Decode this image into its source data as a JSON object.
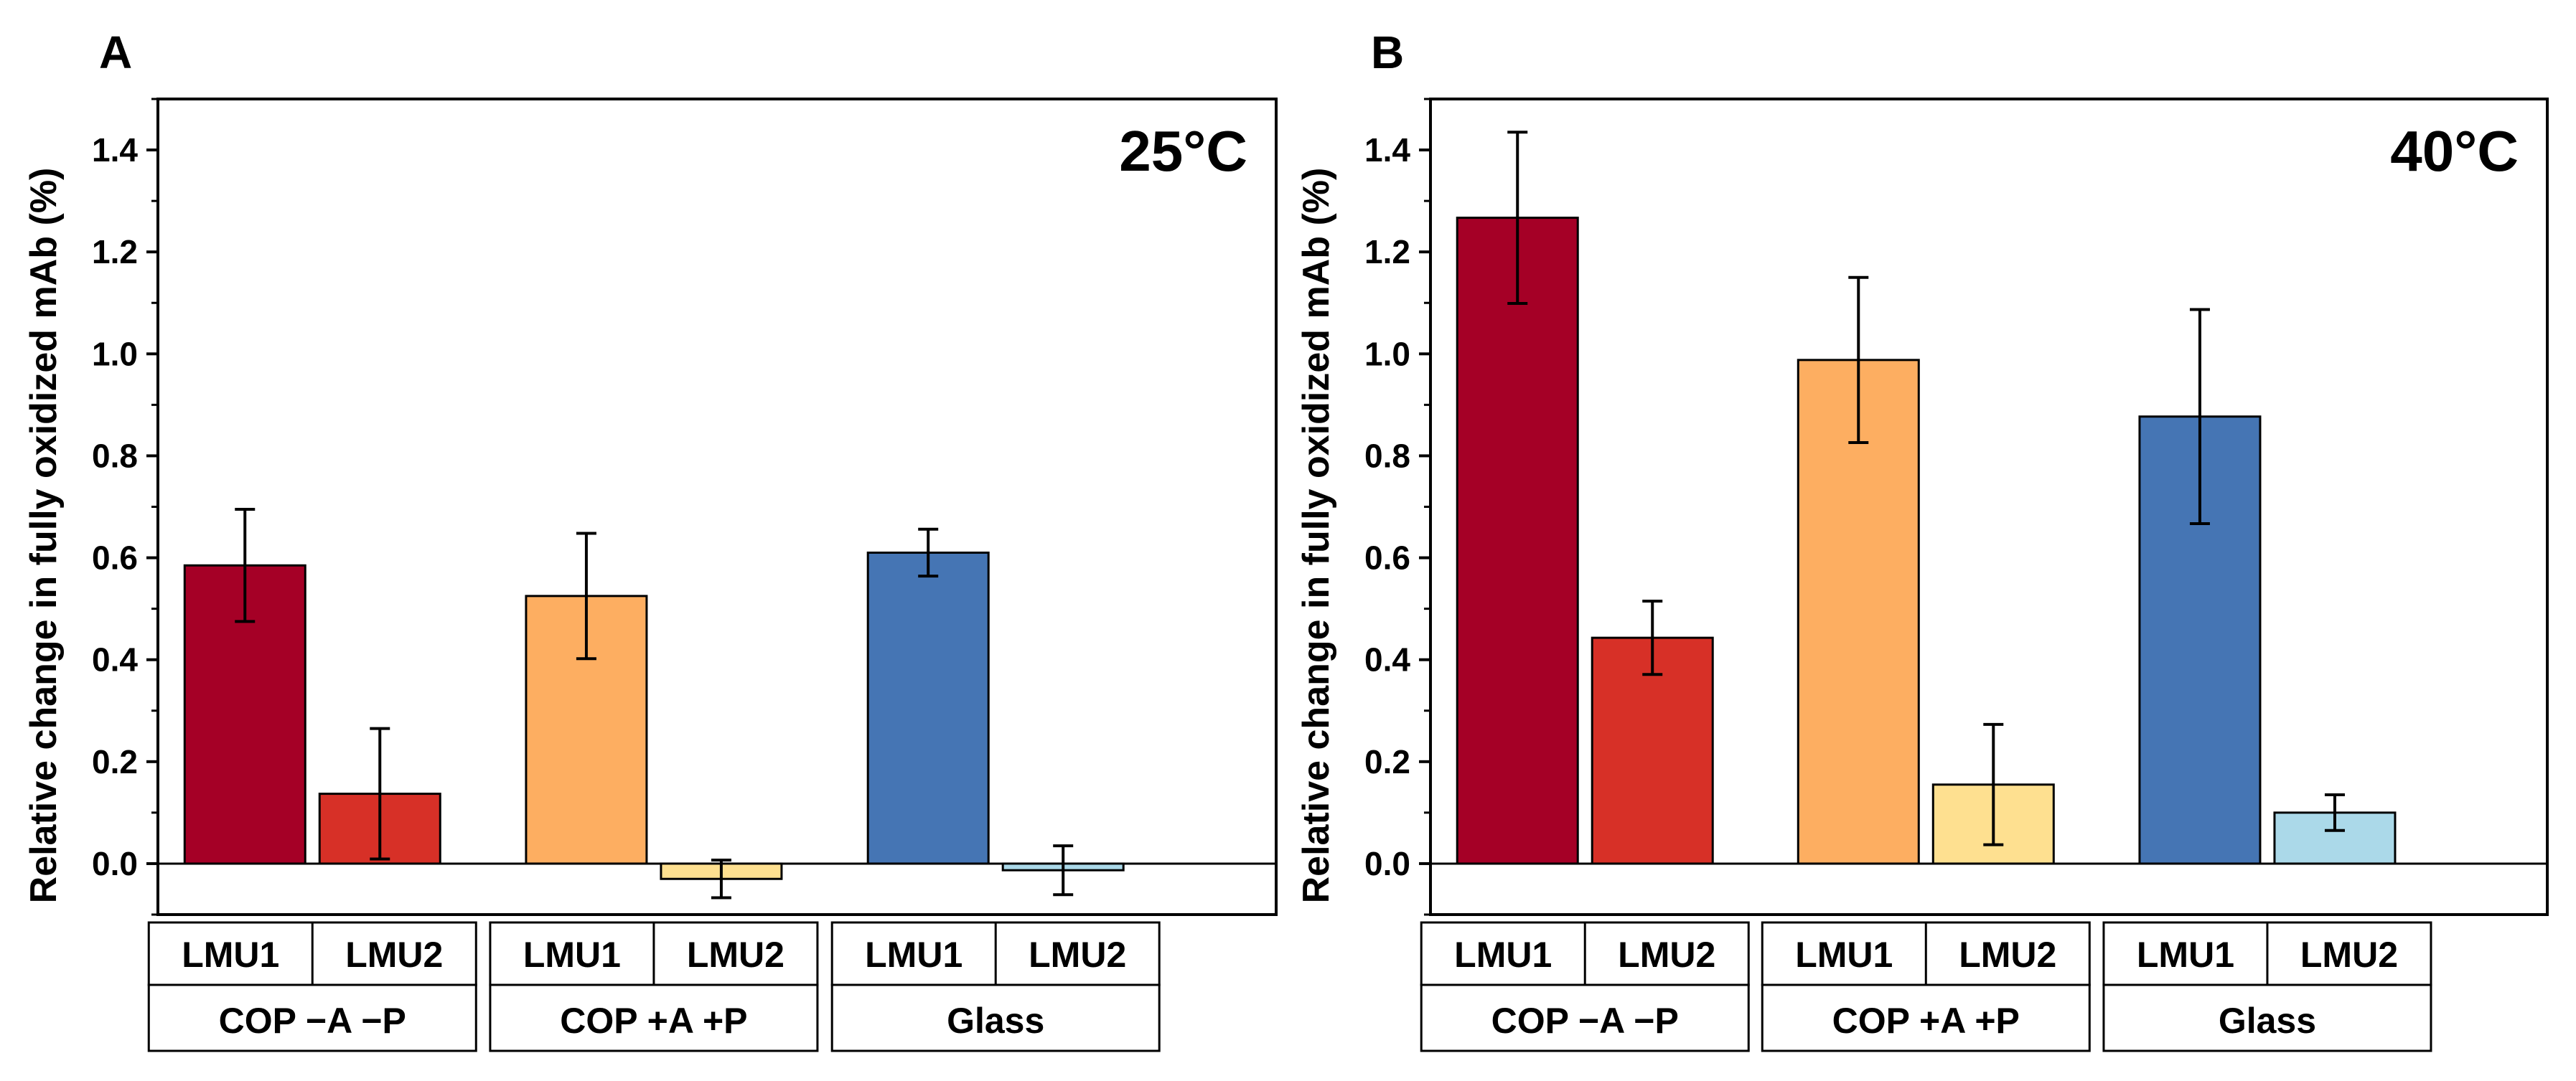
{
  "chart_data": [
    {
      "type": "bar",
      "panel": "A",
      "temperature": "25°C",
      "ylabel": "Relative change in fully oxidized mAb (%)",
      "xlabel": "",
      "ylim": [
        -0.1,
        1.5
      ],
      "yticks": [
        0.0,
        0.2,
        0.4,
        0.6,
        0.8,
        1.0,
        1.2,
        1.4
      ],
      "ytick_labels": [
        "0.0",
        "0.2",
        "0.4",
        "0.6",
        "0.8",
        "1.0",
        "1.2",
        "1.4"
      ],
      "groups": [
        "COP −A −P",
        "COP +A +P",
        "Glass"
      ],
      "sub_categories": [
        "LMU1",
        "LMU2"
      ],
      "bars": [
        {
          "group": "COP −A −P",
          "label": "LMU1",
          "value": 0.585,
          "error": 0.11,
          "color": "#A50026"
        },
        {
          "group": "COP −A −P",
          "label": "LMU2",
          "value": 0.137,
          "error": 0.128,
          "color": "#D73027"
        },
        {
          "group": "COP +A +P",
          "label": "LMU1",
          "value": 0.525,
          "error": 0.123,
          "color": "#FDAE61"
        },
        {
          "group": "COP +A +P",
          "label": "LMU2",
          "value": -0.03,
          "error": 0.037,
          "color": "#FEE090"
        },
        {
          "group": "Glass",
          "label": "LMU1",
          "value": 0.61,
          "error": 0.046,
          "color": "#4575B4"
        },
        {
          "group": "Glass",
          "label": "LMU2",
          "value": -0.013,
          "error": 0.048,
          "color": "#ABD9E9"
        }
      ]
    },
    {
      "type": "bar",
      "panel": "B",
      "temperature": "40°C",
      "ylabel": "Relative change in fully oxidized mAb (%)",
      "xlabel": "",
      "ylim": [
        -0.1,
        1.5
      ],
      "yticks": [
        0.0,
        0.2,
        0.4,
        0.6,
        0.8,
        1.0,
        1.2,
        1.4
      ],
      "ytick_labels": [
        "0.0",
        "0.2",
        "0.4",
        "0.6",
        "0.8",
        "1.0",
        "1.2",
        "1.4"
      ],
      "groups": [
        "COP −A −P",
        "COP +A +P",
        "Glass"
      ],
      "sub_categories": [
        "LMU1",
        "LMU2"
      ],
      "bars": [
        {
          "group": "COP −A −P",
          "label": "LMU1",
          "value": 1.267,
          "error": 0.168,
          "color": "#A50026"
        },
        {
          "group": "COP −A −P",
          "label": "LMU2",
          "value": 0.443,
          "error": 0.072,
          "color": "#D73027"
        },
        {
          "group": "COP +A +P",
          "label": "LMU1",
          "value": 0.988,
          "error": 0.162,
          "color": "#FDAE61"
        },
        {
          "group": "COP +A +P",
          "label": "LMU2",
          "value": 0.155,
          "error": 0.118,
          "color": "#FEE090"
        },
        {
          "group": "Glass",
          "label": "LMU1",
          "value": 0.877,
          "error": 0.21,
          "color": "#4575B4"
        },
        {
          "group": "Glass",
          "label": "LMU2",
          "value": 0.1,
          "error": 0.035,
          "color": "#ABD9E9"
        }
      ]
    }
  ]
}
